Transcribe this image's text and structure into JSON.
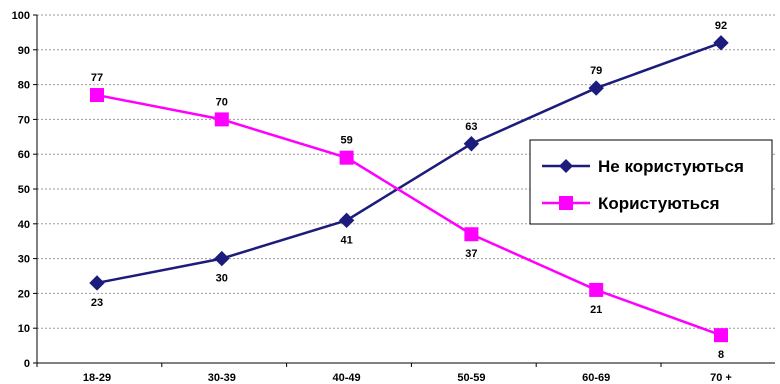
{
  "chart_data": {
    "type": "line",
    "categories": [
      "18-29",
      "30-39",
      "40-49",
      "50-59",
      "60-69",
      "70 +"
    ],
    "yticks": [
      "0",
      "10",
      "20",
      "30",
      "40",
      "50",
      "60",
      "70",
      "80",
      "90",
      "100"
    ],
    "ylim": [
      0,
      100
    ],
    "grid": true,
    "legend_position": "right",
    "series": [
      {
        "name": "Не користуються",
        "values": [
          23,
          30,
          41,
          63,
          79,
          92
        ],
        "labels": [
          "23",
          "30",
          "41",
          "63",
          "79",
          "92"
        ],
        "color": "#1c1c7c",
        "marker": "diamond"
      },
      {
        "name": "Користуються",
        "values": [
          77,
          70,
          59,
          37,
          21,
          8
        ],
        "labels": [
          "77",
          "70",
          "59",
          "37",
          "21",
          "8"
        ],
        "color": "#ff00ff",
        "marker": "square"
      }
    ]
  }
}
